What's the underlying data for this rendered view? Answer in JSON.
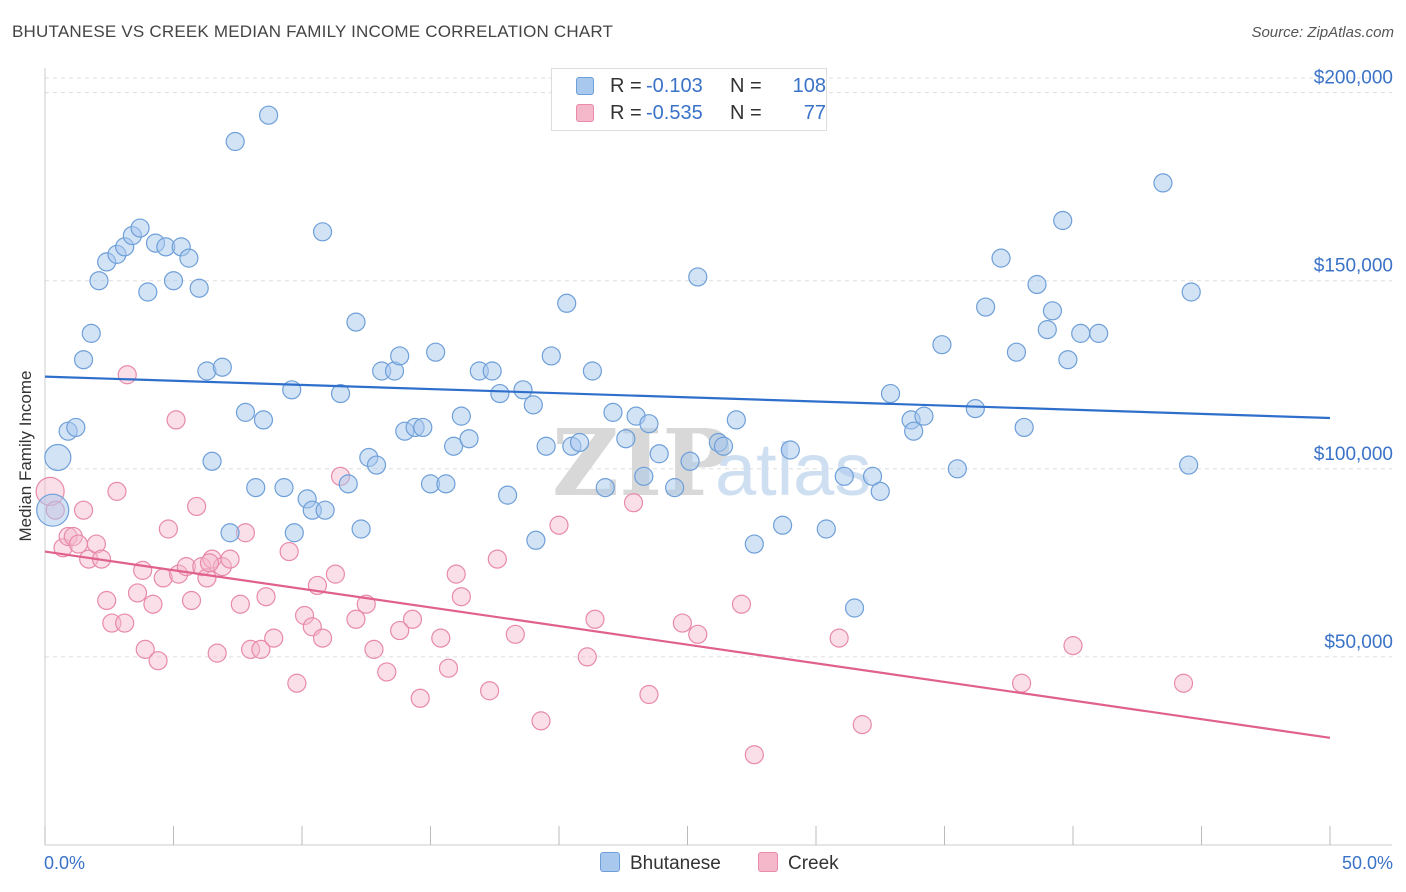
{
  "header": {
    "title": "BHUTANESE VS CREEK MEDIAN FAMILY INCOME CORRELATION CHART",
    "source": "Source: ZipAtlas.com"
  },
  "legend": {
    "rows": [
      {
        "r_label": "R =",
        "r_value": "-0.103",
        "n_label": "N =",
        "n_value": "108"
      },
      {
        "r_label": "R =",
        "r_value": "-0.535",
        "n_label": "N =",
        "n_value": "77"
      }
    ],
    "bottom": [
      "Bhutanese",
      "Creek"
    ]
  },
  "watermark": {
    "zip": "ZIP",
    "atlas": "atlas"
  },
  "colors": {
    "blue_fill": "#a8c8ee",
    "blue_stroke": "#6e9fd8",
    "blue_line": "#2f6fcc",
    "pink_fill": "#f5b8cb",
    "pink_stroke": "#e88aa8",
    "pink_line": "#e0608e",
    "axis_text": "#3a72c8",
    "grid": "#dddddd"
  },
  "chart_data": {
    "type": "scatter",
    "title": "BHUTANESE VS CREEK MEDIAN FAMILY INCOME CORRELATION CHART",
    "xlabel": "",
    "ylabel": "Median Family Income",
    "xlim": [
      0,
      50
    ],
    "ylim": [
      0,
      210000
    ],
    "x_tick_labels": [
      "0.0%",
      "50.0%"
    ],
    "y_ticks": [
      50000,
      100000,
      150000,
      200000
    ],
    "y_tick_labels": [
      "$50,000",
      "$100,000",
      "$150,000",
      "$200,000"
    ],
    "grid": true,
    "legend_position": "top-center",
    "series": [
      {
        "name": "Bhutanese",
        "R": -0.103,
        "N": 108,
        "trend": {
          "x": [
            0,
            50
          ],
          "y": [
            124500,
            113500
          ]
        },
        "points": [
          [
            0.3,
            89000
          ],
          [
            0.5,
            103000
          ],
          [
            0.9,
            110000
          ],
          [
            1.2,
            111000
          ],
          [
            1.5,
            129000
          ],
          [
            1.8,
            136000
          ],
          [
            2.1,
            150000
          ],
          [
            2.4,
            155000
          ],
          [
            2.8,
            157000
          ],
          [
            3.1,
            159000
          ],
          [
            3.4,
            162000
          ],
          [
            3.7,
            164000
          ],
          [
            4.0,
            147000
          ],
          [
            4.3,
            160000
          ],
          [
            4.7,
            159000
          ],
          [
            5.0,
            150000
          ],
          [
            5.3,
            159000
          ],
          [
            5.6,
            156000
          ],
          [
            6.0,
            148000
          ],
          [
            6.3,
            126000
          ],
          [
            6.5,
            102000
          ],
          [
            6.9,
            127000
          ],
          [
            7.2,
            83000
          ],
          [
            7.4,
            187000
          ],
          [
            7.8,
            115000
          ],
          [
            8.2,
            95000
          ],
          [
            8.5,
            113000
          ],
          [
            8.7,
            194000
          ],
          [
            9.3,
            95000
          ],
          [
            9.6,
            121000
          ],
          [
            9.7,
            83000
          ],
          [
            10.2,
            92000
          ],
          [
            10.4,
            89000
          ],
          [
            10.9,
            89000
          ],
          [
            10.8,
            163000
          ],
          [
            11.5,
            120000
          ],
          [
            11.8,
            96000
          ],
          [
            12.1,
            139000
          ],
          [
            12.3,
            84000
          ],
          [
            12.6,
            103000
          ],
          [
            12.9,
            101000
          ],
          [
            13.1,
            126000
          ],
          [
            13.6,
            126000
          ],
          [
            13.8,
            130000
          ],
          [
            14.0,
            110000
          ],
          [
            14.4,
            111000
          ],
          [
            14.7,
            111000
          ],
          [
            15.0,
            96000
          ],
          [
            15.6,
            96000
          ],
          [
            15.2,
            131000
          ],
          [
            15.9,
            106000
          ],
          [
            16.2,
            114000
          ],
          [
            16.5,
            108000
          ],
          [
            16.9,
            126000
          ],
          [
            17.4,
            126000
          ],
          [
            17.7,
            120000
          ],
          [
            18.0,
            93000
          ],
          [
            18.6,
            121000
          ],
          [
            19.0,
            117000
          ],
          [
            19.1,
            81000
          ],
          [
            19.5,
            106000
          ],
          [
            19.7,
            130000
          ],
          [
            20.3,
            144000
          ],
          [
            20.5,
            106000
          ],
          [
            20.8,
            107000
          ],
          [
            21.3,
            126000
          ],
          [
            21.8,
            95000
          ],
          [
            22.1,
            115000
          ],
          [
            22.6,
            108000
          ],
          [
            23.0,
            114000
          ],
          [
            23.3,
            98000
          ],
          [
            23.5,
            112000
          ],
          [
            23.9,
            104000
          ],
          [
            24.5,
            95000
          ],
          [
            25.1,
            102000
          ],
          [
            25.4,
            151000
          ],
          [
            26.2,
            107000
          ],
          [
            26.4,
            106000
          ],
          [
            26.9,
            113000
          ],
          [
            27.6,
            80000
          ],
          [
            28.7,
            85000
          ],
          [
            29.0,
            105000
          ],
          [
            30.4,
            84000
          ],
          [
            31.1,
            98000
          ],
          [
            31.5,
            63000
          ],
          [
            32.2,
            98000
          ],
          [
            32.5,
            94000
          ],
          [
            32.9,
            120000
          ],
          [
            33.7,
            113000
          ],
          [
            33.8,
            110000
          ],
          [
            34.2,
            114000
          ],
          [
            34.9,
            133000
          ],
          [
            35.5,
            100000
          ],
          [
            36.2,
            116000
          ],
          [
            36.6,
            143000
          ],
          [
            37.2,
            156000
          ],
          [
            37.8,
            131000
          ],
          [
            38.1,
            111000
          ],
          [
            38.6,
            149000
          ],
          [
            39.0,
            137000
          ],
          [
            39.2,
            142000
          ],
          [
            39.6,
            166000
          ],
          [
            39.8,
            129000
          ],
          [
            40.3,
            136000
          ],
          [
            41.0,
            136000
          ],
          [
            43.5,
            176000
          ],
          [
            44.5,
            101000
          ],
          [
            44.6,
            147000
          ]
        ]
      },
      {
        "name": "Creek",
        "R": -0.535,
        "N": 77,
        "trend": {
          "x": [
            0,
            50
          ],
          "y": [
            78000,
            28500
          ]
        },
        "points": [
          [
            0.2,
            94000
          ],
          [
            0.4,
            89000
          ],
          [
            0.7,
            79000
          ],
          [
            0.9,
            82000
          ],
          [
            1.1,
            82000
          ],
          [
            1.3,
            80000
          ],
          [
            1.5,
            89000
          ],
          [
            1.7,
            76000
          ],
          [
            2.0,
            80000
          ],
          [
            2.2,
            76000
          ],
          [
            2.4,
            65000
          ],
          [
            2.6,
            59000
          ],
          [
            2.8,
            94000
          ],
          [
            3.1,
            59000
          ],
          [
            3.2,
            125000
          ],
          [
            3.6,
            67000
          ],
          [
            3.8,
            73000
          ],
          [
            3.9,
            52000
          ],
          [
            4.2,
            64000
          ],
          [
            4.4,
            49000
          ],
          [
            4.6,
            71000
          ],
          [
            4.8,
            84000
          ],
          [
            5.1,
            113000
          ],
          [
            5.2,
            72000
          ],
          [
            5.5,
            74000
          ],
          [
            5.7,
            65000
          ],
          [
            5.9,
            90000
          ],
          [
            6.1,
            74000
          ],
          [
            6.3,
            71000
          ],
          [
            6.5,
            76000
          ],
          [
            6.7,
            51000
          ],
          [
            6.9,
            74000
          ],
          [
            7.2,
            76000
          ],
          [
            7.6,
            64000
          ],
          [
            7.8,
            83000
          ],
          [
            8.0,
            52000
          ],
          [
            8.4,
            52000
          ],
          [
            8.6,
            66000
          ],
          [
            8.9,
            55000
          ],
          [
            9.5,
            78000
          ],
          [
            9.8,
            43000
          ],
          [
            10.1,
            61000
          ],
          [
            10.4,
            58000
          ],
          [
            10.6,
            69000
          ],
          [
            10.8,
            55000
          ],
          [
            11.3,
            72000
          ],
          [
            11.5,
            98000
          ],
          [
            12.5,
            64000
          ],
          [
            12.8,
            52000
          ],
          [
            13.3,
            46000
          ],
          [
            13.8,
            57000
          ],
          [
            14.3,
            60000
          ],
          [
            14.6,
            39000
          ],
          [
            15.4,
            55000
          ],
          [
            15.7,
            47000
          ],
          [
            16.0,
            72000
          ],
          [
            16.2,
            66000
          ],
          [
            17.3,
            41000
          ],
          [
            17.6,
            76000
          ],
          [
            18.3,
            56000
          ],
          [
            19.3,
            33000
          ],
          [
            20.0,
            85000
          ],
          [
            21.1,
            50000
          ],
          [
            21.4,
            60000
          ],
          [
            22.9,
            91000
          ],
          [
            23.5,
            40000
          ],
          [
            24.8,
            59000
          ],
          [
            25.4,
            56000
          ],
          [
            27.1,
            64000
          ],
          [
            27.6,
            24000
          ],
          [
            30.9,
            55000
          ],
          [
            31.8,
            32000
          ],
          [
            38.0,
            43000
          ],
          [
            40.0,
            53000
          ],
          [
            44.3,
            43000
          ],
          [
            6.4,
            75000
          ],
          [
            12.1,
            60000
          ]
        ]
      }
    ]
  }
}
